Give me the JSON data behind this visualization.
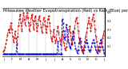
{
  "title": "Milwaukee Weather Evapotranspiration (Red) vs Rain (Blue) per Day (Inches)",
  "title_fontsize": 3.5,
  "background_color": "#ffffff",
  "grid_color": "#999999",
  "ylim": [
    -0.02,
    0.55
  ],
  "yticks": [
    0.1,
    0.2,
    0.3,
    0.4,
    0.5
  ],
  "red_x": [
    0,
    1,
    2,
    3,
    4,
    5,
    6,
    7,
    8,
    9,
    10,
    11,
    12,
    13,
    14,
    15,
    16,
    17,
    18,
    19,
    20,
    21,
    22,
    23,
    24,
    25,
    26,
    27,
    28,
    29,
    30,
    31,
    32,
    33,
    34,
    35,
    36,
    37,
    38,
    39,
    40,
    41,
    42,
    43,
    44,
    45,
    46,
    47,
    48,
    49,
    50,
    51,
    52,
    53,
    54,
    55,
    56,
    57,
    58,
    59,
    60,
    61,
    62,
    63,
    64,
    65,
    66,
    67,
    68,
    69,
    70,
    71,
    72,
    73,
    74,
    75,
    76,
    77,
    78,
    79,
    80,
    81,
    82,
    83,
    84,
    85,
    86,
    87,
    88,
    89,
    90,
    91,
    92,
    93,
    94,
    95,
    96,
    97,
    98,
    99,
    100,
    101,
    102,
    103,
    104,
    105,
    106,
    107,
    108,
    109,
    110,
    111,
    112,
    113,
    114,
    115,
    116,
    117,
    118,
    119,
    120
  ],
  "red_y": [
    0.04,
    0.06,
    0.09,
    0.13,
    0.18,
    0.24,
    0.3,
    0.26,
    0.32,
    0.38,
    0.3,
    0.22,
    0.15,
    0.2,
    0.28,
    0.2,
    0.14,
    0.22,
    0.35,
    0.42,
    0.48,
    0.38,
    0.28,
    0.4,
    0.5,
    0.42,
    0.35,
    0.44,
    0.5,
    0.44,
    0.38,
    0.28,
    0.36,
    0.44,
    0.48,
    0.4,
    0.3,
    0.4,
    0.46,
    0.38,
    0.28,
    0.35,
    0.42,
    0.46,
    0.4,
    0.33,
    0.26,
    0.36,
    0.44,
    0.4,
    0.34,
    0.26,
    0.34,
    0.42,
    0.46,
    0.38,
    0.28,
    0.2,
    0.16,
    0.22,
    0.3,
    0.22,
    0.14,
    0.18,
    0.28,
    0.34,
    0.26,
    0.18,
    0.12,
    0.18,
    0.28,
    0.22,
    0.14,
    0.08,
    0.06,
    0.1,
    0.16,
    0.22,
    0.28,
    0.34,
    0.26,
    0.18,
    0.12,
    0.18,
    0.26,
    0.32,
    0.4,
    0.44,
    0.38,
    0.28,
    0.2,
    0.16,
    0.1,
    0.06,
    0.04,
    0.06,
    0.1,
    0.16,
    0.22,
    0.26,
    0.32,
    0.38,
    0.44,
    0.38,
    0.28,
    0.35,
    0.42,
    0.48,
    0.4,
    0.3,
    0.22,
    0.16,
    0.1,
    0.06,
    0.04,
    0.06,
    0.1,
    0.16,
    0.2,
    0.24,
    0.28
  ],
  "blue_x": [
    0,
    1,
    2,
    3,
    4,
    5,
    6,
    7,
    8,
    9,
    10,
    11,
    12,
    13,
    14,
    15,
    16,
    17,
    18,
    19,
    20,
    21,
    22,
    23,
    24,
    25,
    26,
    27,
    28,
    29,
    30,
    31,
    32,
    33,
    34,
    35,
    36,
    37,
    38,
    39,
    40,
    41,
    42,
    43,
    44,
    45,
    46,
    47,
    48,
    49,
    50,
    51,
    52,
    53,
    54,
    55,
    56,
    57,
    58,
    59,
    60,
    61,
    62,
    63,
    64,
    65,
    66,
    67,
    68,
    69,
    70,
    71,
    72,
    73,
    74,
    75,
    76,
    77,
    78,
    79,
    80,
    81,
    82,
    83,
    84,
    85,
    86,
    87,
    88,
    89,
    90,
    91,
    92,
    93,
    94,
    95,
    96,
    97,
    98,
    99,
    100,
    101,
    102,
    103,
    104,
    105,
    106,
    107,
    108,
    109,
    110,
    111,
    112,
    113,
    114,
    115,
    116,
    117,
    118,
    119,
    120
  ],
  "blue_y": [
    0.01,
    0.01,
    0.01,
    0.01,
    0.01,
    0.01,
    0.01,
    0.01,
    0.01,
    0.01,
    0.01,
    0.01,
    0.01,
    0.01,
    0.01,
    0.01,
    0.12,
    0.01,
    0.01,
    0.01,
    0.01,
    0.01,
    0.01,
    0.01,
    0.01,
    0.01,
    0.01,
    0.01,
    0.01,
    0.01,
    0.01,
    0.01,
    0.01,
    0.01,
    0.01,
    0.01,
    0.01,
    0.01,
    0.01,
    0.01,
    0.01,
    0.01,
    0.01,
    0.01,
    0.01,
    0.01,
    0.01,
    0.01,
    0.01,
    0.01,
    0.01,
    0.01,
    0.01,
    0.01,
    0.01,
    0.01,
    0.01,
    0.01,
    0.01,
    0.01,
    0.01,
    0.01,
    0.01,
    0.01,
    0.01,
    0.16,
    0.01,
    0.01,
    0.01,
    0.01,
    0.42,
    0.38,
    0.28,
    0.18,
    0.22,
    0.36,
    0.3,
    0.18,
    0.14,
    0.1,
    0.08,
    0.12,
    0.2,
    0.28,
    0.22,
    0.14,
    0.08,
    0.05,
    0.02,
    0.06,
    0.14,
    0.2,
    0.16,
    0.1,
    0.06,
    0.02,
    0.06,
    0.1,
    0.14,
    0.18,
    0.14,
    0.1,
    0.06,
    0.04,
    0.06,
    0.1,
    0.14,
    0.18,
    0.14,
    0.1,
    0.06,
    0.04,
    0.02,
    0.06,
    0.1,
    0.14,
    0.18,
    0.14,
    0.1,
    0.06,
    0.02
  ],
  "xtick_positions": [
    0,
    10,
    20,
    30,
    40,
    50,
    60,
    70,
    80,
    90,
    100,
    110,
    120
  ],
  "xtick_labels": [
    "J",
    "F",
    "M",
    "A",
    "M",
    "J",
    "J",
    "A",
    "S",
    "O",
    "N",
    "D",
    "J"
  ],
  "vline_positions": [
    10,
    20,
    30,
    40,
    50,
    60,
    70,
    80,
    90,
    100,
    110,
    120
  ],
  "red_color": "#cc0000",
  "blue_color": "#0000cc",
  "linewidth": 0.6,
  "markersize": 1.0
}
